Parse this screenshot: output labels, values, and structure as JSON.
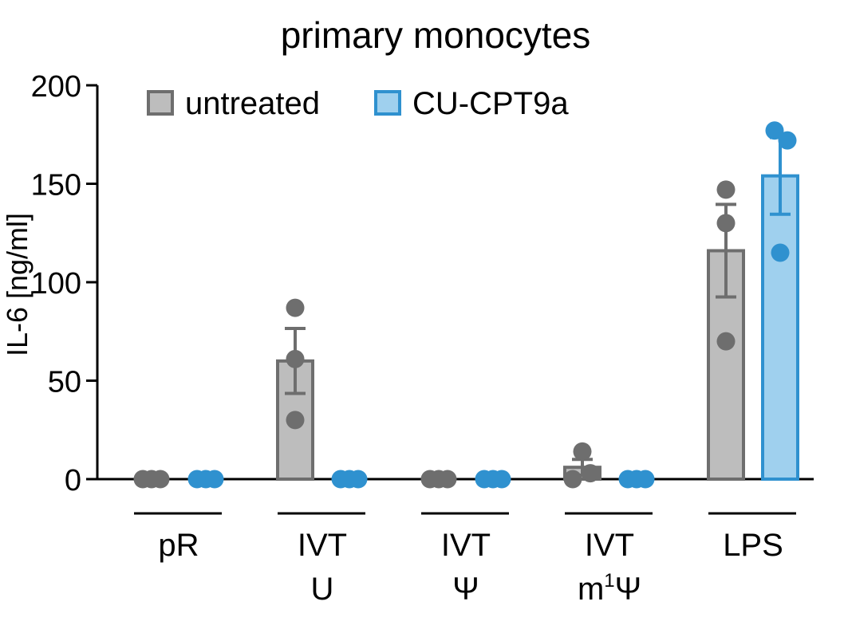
{
  "chart_data": {
    "type": "bar",
    "title": "primary monocytes",
    "ylabel": "IL-6 [ng/ml]",
    "xlabel": "",
    "ylim": [
      0,
      200
    ],
    "yticks": [
      0,
      50,
      100,
      150,
      200
    ],
    "categories": [
      {
        "lines": [
          "pR"
        ]
      },
      {
        "lines": [
          "IVT",
          "U"
        ]
      },
      {
        "lines": [
          "IVT",
          "Ψ"
        ]
      },
      {
        "lines": [
          "IVT",
          "m",
          "1",
          "Ψ"
        ],
        "note": "second line is m¹Ψ"
      },
      {
        "lines": [
          "LPS"
        ]
      }
    ],
    "series": [
      {
        "name": "untreated",
        "color": "#bdbdbd",
        "edge": "#6e6e6e",
        "dot": "#6e6e6e",
        "values": [
          0,
          60,
          0,
          6,
          116
        ],
        "errors": [
          0,
          16.5,
          0,
          4,
          23.5
        ],
        "points": [
          [
            0,
            0,
            0
          ],
          [
            87,
            61,
            30
          ],
          [
            0,
            0,
            0
          ],
          [
            14,
            3,
            0
          ],
          [
            147,
            130,
            70
          ]
        ]
      },
      {
        "name": "CU-CPT9a",
        "color": "#9fd0ee",
        "edge": "#2f91cf",
        "dot": "#2f91cf",
        "values": [
          0,
          0,
          0,
          0,
          154
        ],
        "errors": [
          0,
          0,
          0,
          0,
          19.5
        ],
        "points": [
          [
            0,
            0,
            0
          ],
          [
            0,
            0,
            0
          ],
          [
            0,
            0,
            0
          ],
          [
            0,
            0,
            0
          ],
          [
            177,
            172,
            115
          ]
        ]
      }
    ],
    "legend": "top-left",
    "grid": false
  }
}
